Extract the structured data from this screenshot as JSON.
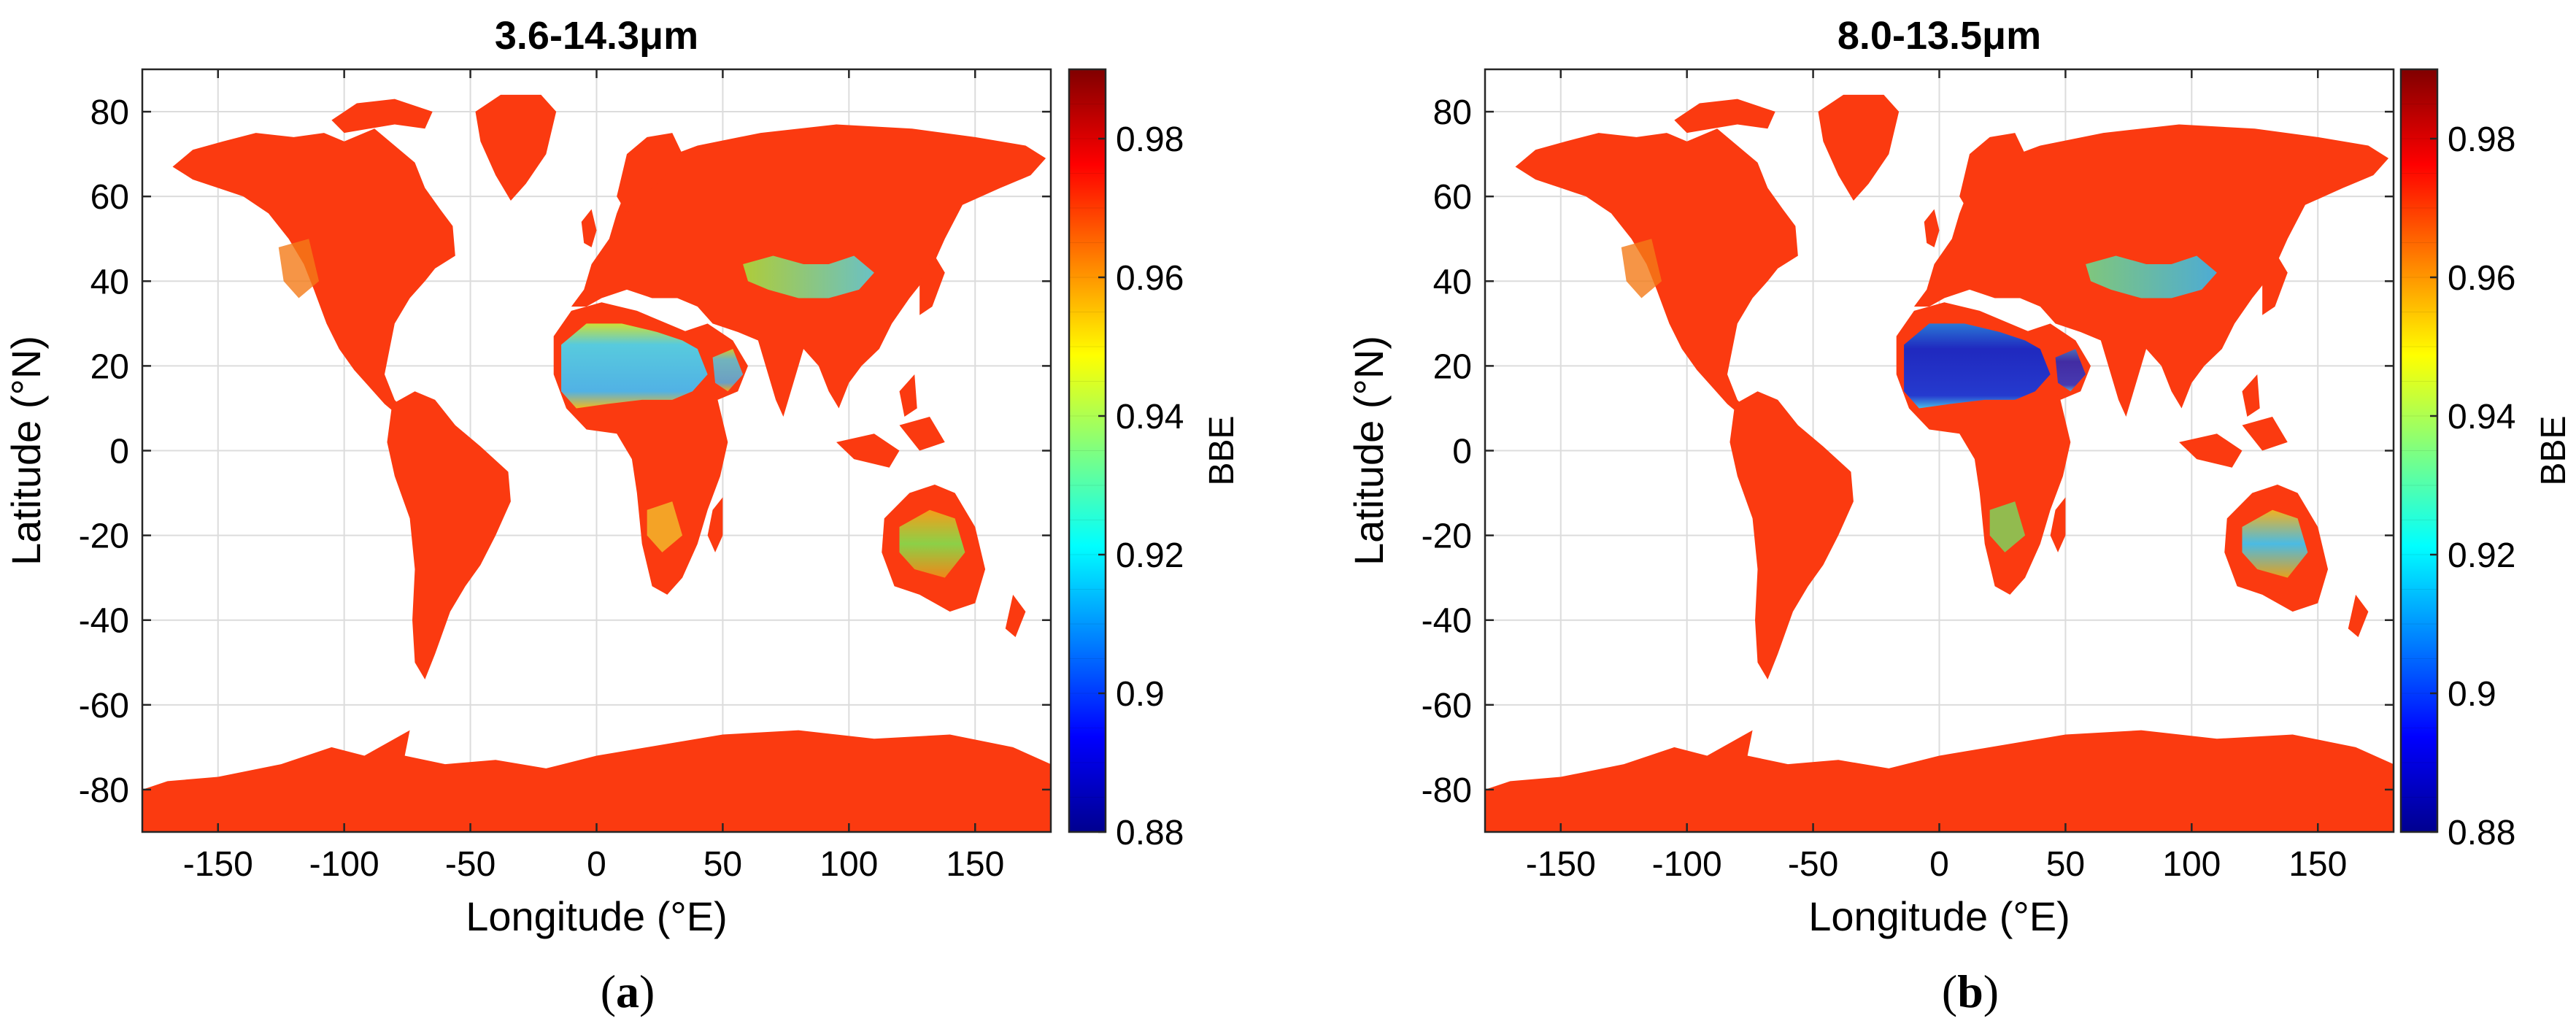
{
  "panels": [
    {
      "title": "3.6-14.3μm",
      "caption_open": "(",
      "caption_letter": "a",
      "caption_close": ")"
    },
    {
      "title": "8.0-13.5μm",
      "caption_open": "(",
      "caption_letter": "b",
      "caption_close": ")"
    }
  ],
  "axes": {
    "xlabel": "Longitude (°E)",
    "ylabel": "Latitude (°N)",
    "xlim": [
      -180,
      180
    ],
    "ylim": [
      -90,
      90
    ],
    "xticks": [
      "-150",
      "-100",
      "-50",
      "0",
      "50",
      "100",
      "150"
    ],
    "yticks": [
      "80",
      "60",
      "40",
      "20",
      "0",
      "-20",
      "-40",
      "-60",
      "-80"
    ],
    "grid": true
  },
  "colorbar": {
    "label": "BBE",
    "min": 0.88,
    "max": 0.99,
    "ticks": [
      "0.98",
      "0.96",
      "0.94",
      "0.92",
      "0.9",
      "0.88"
    ],
    "colormap": "jet"
  },
  "colors": {
    "land_dominant": "#fb3a10",
    "ocean": "#ffffff",
    "antarctica": "#f52a0c"
  }
}
